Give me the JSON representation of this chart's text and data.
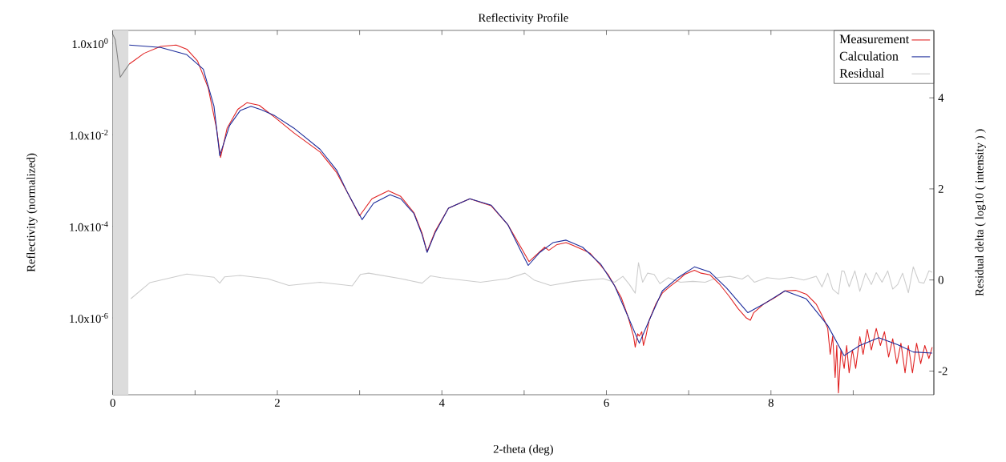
{
  "chart_data": {
    "type": "line",
    "title": "Reflectivity Profile",
    "xlabel": "2-theta (deg)",
    "ylabel": "Reflectivity (normalized)",
    "y2label": "Residual delta ( log10 ( intensity ) )",
    "xlim": [
      0,
      9.98
    ],
    "xticks": [
      0,
      {
        "value": 1,
        "label": null
      },
      2,
      {
        "value": 3,
        "label": null
      },
      4,
      {
        "value": 5,
        "label": null
      },
      6,
      {
        "value": 7,
        "label": null
      },
      8,
      {
        "value": 9,
        "label": null
      }
    ],
    "ylim": [
      2.1e-08,
      1.9
    ],
    "log": "y",
    "yticks": [
      {
        "value": 1,
        "label": "1.0x10$^{0}$"
      },
      {
        "value": 0.01,
        "label": "1.0x10$^{-2}$"
      },
      {
        "value": 0.0001,
        "label": "1.0x10$^{-4}$"
      },
      {
        "value": 1e-06,
        "label": "1.0x10$^{-6}$"
      }
    ],
    "y2lim": [
      -2.52,
      5.48
    ],
    "y2ticks": [
      -2,
      0,
      2,
      4
    ],
    "legend": "top right",
    "bands": [
      {
        "axis": "x",
        "from": 0,
        "to": 0.19,
        "color": "#dcdcdc"
      }
    ],
    "series": [
      {
        "name": "Measurement",
        "color": "#e02020",
        "x": [
          0.2,
          0.38,
          0.58,
          0.77,
          0.9,
          1.03,
          1.16,
          1.26,
          1.31,
          1.39,
          1.52,
          1.63,
          1.78,
          1.97,
          2.2,
          2.52,
          2.72,
          2.85,
          3.0,
          3.15,
          3.35,
          3.5,
          3.66,
          3.76,
          3.82,
          3.92,
          4.08,
          4.34,
          4.6,
          4.8,
          4.96,
          5.06,
          5.15,
          5.25,
          5.3,
          5.4,
          5.51,
          5.6,
          5.71,
          5.8,
          5.93,
          6.02,
          6.1,
          6.18,
          6.26,
          6.33,
          6.35,
          6.38,
          6.4,
          6.43,
          6.45,
          6.48,
          6.52,
          6.6,
          6.68,
          6.78,
          6.87,
          6.95,
          7.07,
          7.15,
          7.26,
          7.37,
          7.49,
          7.6,
          7.7,
          7.75,
          7.79,
          7.91,
          8.05,
          8.17,
          8.3,
          8.43,
          8.55,
          8.65,
          8.69,
          8.72,
          8.75,
          8.78,
          8.8,
          8.82,
          8.85,
          8.89,
          8.92,
          8.95,
          8.99,
          9.03,
          9.08,
          9.12,
          9.17,
          9.22,
          9.28,
          9.33,
          9.38,
          9.43,
          9.48,
          9.53,
          9.58,
          9.63,
          9.67,
          9.72,
          9.77,
          9.82,
          9.87,
          9.92,
          9.96
        ],
        "values": [
          0.35,
          0.6,
          0.85,
          0.91,
          0.74,
          0.41,
          0.105,
          0.014,
          0.0032,
          0.014,
          0.036,
          0.05,
          0.044,
          0.024,
          0.011,
          0.0042,
          0.0015,
          0.00056,
          0.00017,
          0.0004,
          0.0006,
          0.00045,
          0.0002,
          7e-05,
          2.8e-05,
          7.9e-05,
          0.00025,
          0.0004,
          0.00028,
          0.00011,
          3.5e-05,
          1.7e-05,
          2.4e-05,
          3.5e-05,
          3e-05,
          4e-05,
          4.4e-05,
          3.8e-05,
          3.1e-05,
          2.6e-05,
          1.4e-05,
          8.9e-06,
          5e-06,
          2.8e-06,
          1.1e-06,
          4e-07,
          2.3e-07,
          4.5e-07,
          4e-07,
          5e-07,
          2.5e-07,
          4e-07,
          8.9e-07,
          2e-06,
          3.5e-06,
          5e-06,
          6.6e-06,
          8.9e-06,
          1.1e-05,
          9.5e-06,
          8.7e-06,
          5.6e-06,
          3e-06,
          1.6e-06,
          1e-06,
          8.9e-07,
          1.3e-06,
          2e-06,
          2.8e-06,
          3.9e-06,
          4e-06,
          3.3e-06,
          2e-06,
          8.9e-07,
          5.9e-07,
          1.6e-07,
          4e-07,
          5e-08,
          2.5e-07,
          2.3e-08,
          2e-07,
          7.9e-08,
          2.5e-07,
          6.3e-08,
          2e-07,
          7.9e-08,
          3.9e-07,
          1.6e-07,
          5.6e-07,
          2e-07,
          5.9e-07,
          2.5e-07,
          5e-07,
          1.4e-07,
          3.5e-07,
          1e-07,
          2.8e-07,
          6.3e-08,
          2.5e-07,
          6.3e-08,
          2.8e-07,
          1e-07,
          2.5e-07,
          1.3e-07,
          2.3e-07
        ]
      },
      {
        "name": "Calculation",
        "color": "#1a2a9a",
        "x": [
          0.2,
          0.58,
          0.9,
          1.1,
          1.23,
          1.3,
          1.42,
          1.55,
          1.68,
          1.81,
          1.97,
          2.2,
          2.52,
          2.72,
          2.85,
          3.03,
          3.17,
          3.37,
          3.5,
          3.66,
          3.76,
          3.82,
          3.92,
          4.08,
          4.34,
          4.6,
          4.8,
          4.96,
          5.05,
          5.19,
          5.35,
          5.51,
          5.71,
          5.93,
          6.1,
          6.26,
          6.4,
          6.52,
          6.68,
          6.87,
          7.07,
          7.26,
          7.46,
          7.72,
          7.91,
          8.17,
          8.43,
          8.69,
          8.89,
          9.08,
          9.31,
          9.54,
          9.73,
          9.96
        ],
        "values": [
          0.91,
          0.81,
          0.56,
          0.27,
          0.042,
          0.0035,
          0.016,
          0.034,
          0.042,
          0.035,
          0.026,
          0.014,
          0.0048,
          0.0017,
          0.00056,
          0.00014,
          0.00032,
          0.00049,
          0.0004,
          0.00019,
          6.5e-05,
          2.7e-05,
          7.4e-05,
          0.00025,
          0.0004,
          0.00029,
          0.00011,
          2.9e-05,
          1.4e-05,
          2.7e-05,
          4.4e-05,
          5e-05,
          3.5e-05,
          1.5e-05,
          5e-06,
          1.1e-06,
          2.8e-07,
          8.9e-07,
          3.9e-06,
          7.6e-06,
          1.3e-05,
          1e-05,
          4.5e-06,
          1.3e-06,
          2e-06,
          3.9e-06,
          2.6e-06,
          6.8e-07,
          1.5e-07,
          2.5e-07,
          3.7e-07,
          2.6e-07,
          1.8e-07,
          1.7e-07
        ]
      },
      {
        "name": "Residual",
        "color": "#cccccc",
        "axis": "y2",
        "x": [
          0.22,
          0.45,
          0.9,
          1.23,
          1.3,
          1.36,
          1.55,
          1.88,
          2.14,
          2.52,
          2.91,
          3.01,
          3.11,
          3.5,
          3.76,
          3.86,
          3.99,
          4.47,
          4.8,
          5.01,
          5.12,
          5.32,
          5.61,
          5.96,
          6.1,
          6.2,
          6.28,
          6.35,
          6.39,
          6.44,
          6.5,
          6.58,
          6.65,
          6.75,
          6.9,
          7.05,
          7.2,
          7.35,
          7.5,
          7.65,
          7.72,
          7.8,
          7.95,
          8.1,
          8.25,
          8.4,
          8.55,
          8.62,
          8.69,
          8.75,
          8.82,
          8.86,
          8.89,
          8.95,
          9.02,
          9.08,
          9.15,
          9.22,
          9.28,
          9.35,
          9.42,
          9.48,
          9.54,
          9.6,
          9.67,
          9.73,
          9.8,
          9.86,
          9.92,
          9.96
        ],
        "values": [
          -0.41,
          -0.06,
          0.13,
          0.06,
          -0.07,
          0.07,
          0.1,
          0.03,
          -0.12,
          -0.05,
          -0.13,
          0.12,
          0.15,
          0.03,
          -0.07,
          0.09,
          0.05,
          -0.05,
          0.03,
          0.15,
          0,
          -0.12,
          -0.03,
          0.03,
          -0.05,
          0.08,
          -0.1,
          -0.29,
          0.38,
          -0.05,
          0.15,
          0.12,
          -0.08,
          0.05,
          -0.05,
          -0.03,
          -0.05,
          0.05,
          0.08,
          0.02,
          0.1,
          -0.05,
          0.05,
          0.02,
          0.06,
          0,
          0.08,
          -0.15,
          0.15,
          -0.2,
          -0.31,
          0.2,
          0.19,
          -0.15,
          0.2,
          -0.25,
          0.15,
          -0.1,
          0.16,
          -0.05,
          0.2,
          -0.2,
          -0.1,
          0.15,
          -0.28,
          0.29,
          -0.05,
          -0.07,
          0.2,
          0.17
        ]
      },
      {
        "color": "#808080",
        "x": [
          0,
          0.03,
          0.09,
          0.15,
          0.2
        ],
        "values": [
          1.55,
          1.2,
          0.18,
          0.26,
          0.35
        ]
      }
    ]
  }
}
